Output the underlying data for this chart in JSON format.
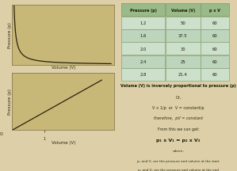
{
  "bg_color": "#ddd0a8",
  "graph_bg_top": "#c8b878",
  "graph_bg_bot": "#c8b878",
  "plot_frame_color": "#8a7a50",
  "table_header_bg": "#9aba8a",
  "table_row_bg1": "#cce0cc",
  "table_row_bg2": "#bdd4bd",
  "table_border": "#7a9a6a",
  "pressure": [
    1.2,
    1.6,
    2.0,
    2.4,
    2.8
  ],
  "volume": [
    50,
    37.5,
    30,
    25,
    21.4
  ],
  "pxv": [
    60,
    60,
    60,
    60,
    60
  ],
  "col_headers": [
    "Pressure (p)",
    "Volume (V)",
    "p x V"
  ],
  "title_text": "Volume (V) is inversely proportional to pressure (p)",
  "or_text": "Or,",
  "line2": "V ∝ 1/p  or  V = constant/p",
  "line3": "therefore,  pV = constant",
  "line4": "From this we can get:",
  "line5": "p₁ x V₁ = p₂ x V₂",
  "line6": "where,",
  "line7": "p₁ and V₁ are the pressure and volume at the start",
  "line8": "p₂ and V₂ are the pressure and volume at the end",
  "xlabel_top": "Volume (V)",
  "ylabel_top": "Pressure (p)",
  "xlabel_bot": "Volume (V)",
  "ylabel_bot": "Pressure (p)",
  "zero_label": "0",
  "curve_color": "#2a2010",
  "text_dark": "#1a1a00",
  "text_med": "#2a2a10"
}
